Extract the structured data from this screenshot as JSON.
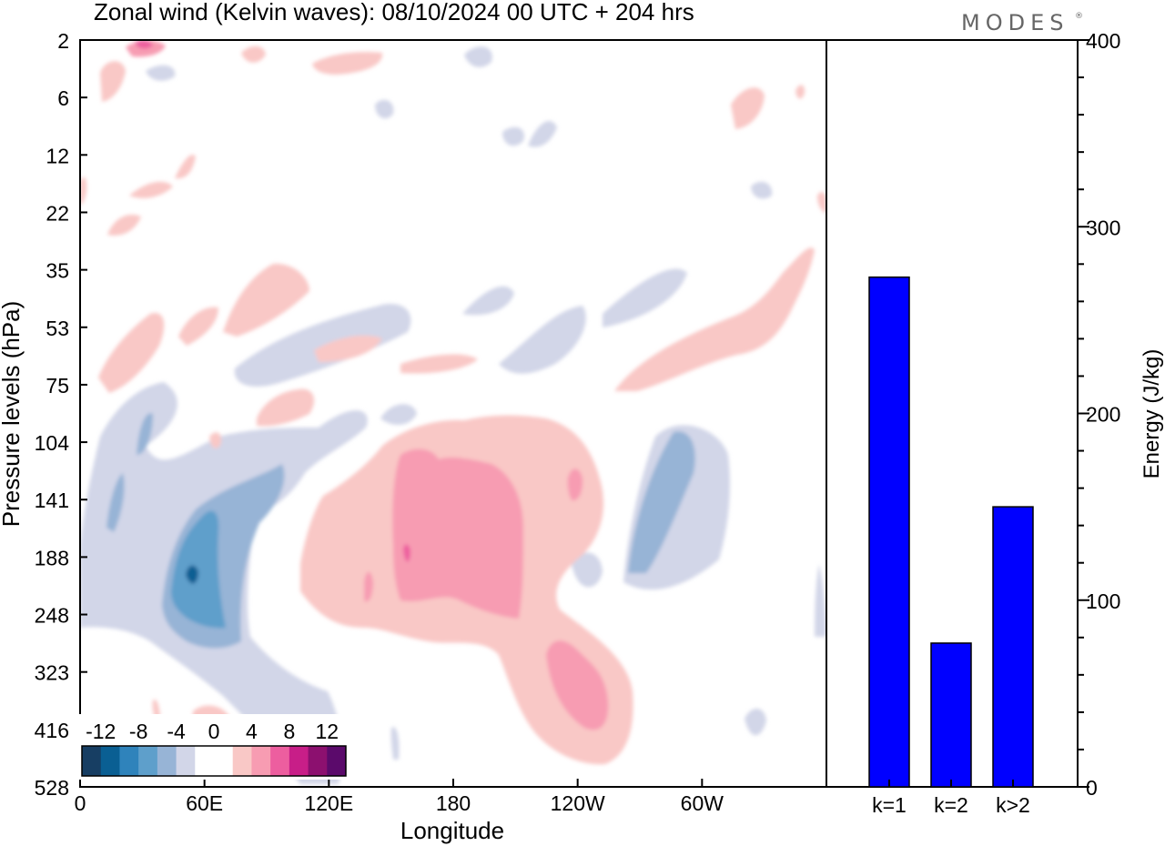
{
  "chart_data": [
    {
      "type": "heatmap",
      "title": "Zonal wind (Kelvin waves):  08/10/2024  00 UTC  + 204 hrs",
      "xlabel": "Longitude",
      "ylabel": "Pressure levels (hPa)",
      "x_ticks": [
        "0",
        "60E",
        "120E",
        "180",
        "120W",
        "60W"
      ],
      "x_tick_degrees": [
        0,
        60,
        120,
        180,
        240,
        300
      ],
      "x_range": [
        0,
        360
      ],
      "y_ticks": [
        "2",
        "6",
        "12",
        "22",
        "35",
        "53",
        "75",
        "104",
        "141",
        "188",
        "248",
        "323",
        "416",
        "528"
      ],
      "y_scale": "pressure levels, top to bottom",
      "colorbar": {
        "labels": [
          "-12",
          "-8",
          "-4",
          "0",
          "4",
          "8",
          "12"
        ],
        "levels": [
          -14,
          -12,
          -10,
          -8,
          -6,
          -4,
          -2,
          0,
          2,
          4,
          6,
          8,
          10,
          12,
          14
        ],
        "colors": [
          "#173e63",
          "#0a5f93",
          "#2f83bb",
          "#5e9fcb",
          "#97b4d6",
          "#d2d6e8",
          "#ffffff",
          "#ffffff",
          "#f9c8c6",
          "#f79cb2",
          "#ed5e9f",
          "#c81e88",
          "#8c106f",
          "#5b0a6b"
        ]
      }
    },
    {
      "type": "bar",
      "categories": [
        "k=1",
        "k=2",
        "k>2"
      ],
      "values": [
        273,
        77,
        150
      ],
      "ylabel": "Energy (J/kg)",
      "ylim": [
        0,
        400
      ],
      "y_ticks": [
        "0",
        "100",
        "200",
        "300",
        "400"
      ],
      "bar_color": "#0000ff"
    }
  ],
  "logo": "MODES",
  "logo_mark": "®"
}
